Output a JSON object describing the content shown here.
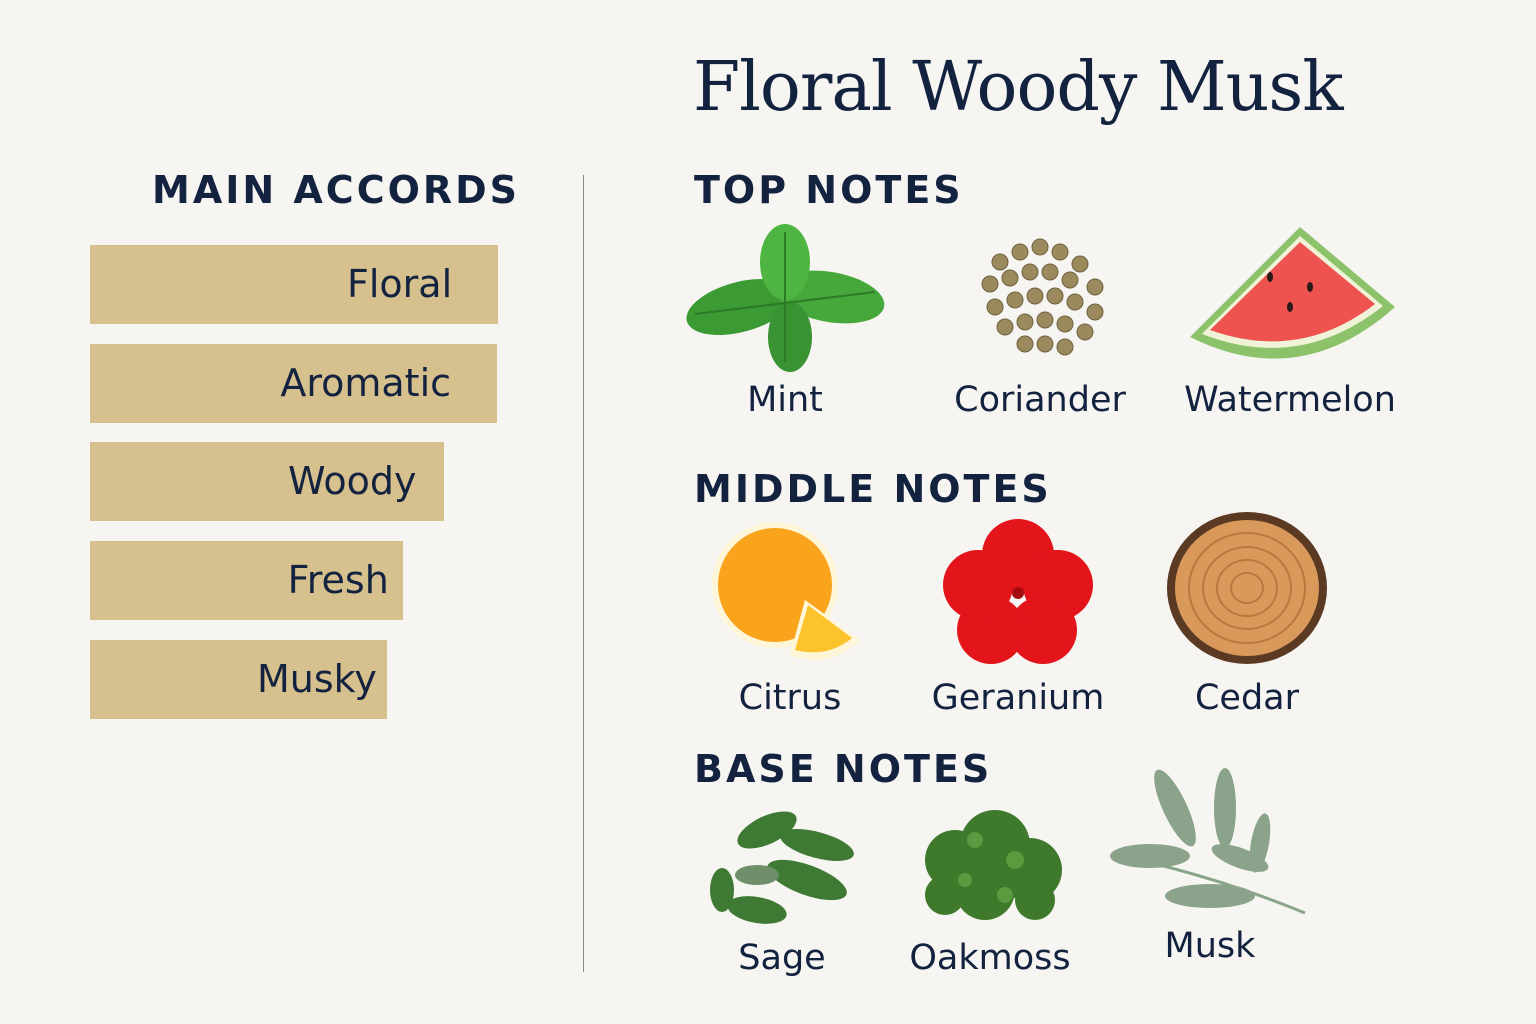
{
  "title": "Floral Woody Musk",
  "accords": {
    "heading": "MAIN ACCORDS",
    "color": "#d6c08e",
    "items": [
      {
        "label": "Floral",
        "strength_pct": 100
      },
      {
        "label": "Aromatic",
        "strength_pct": 99.8
      },
      {
        "label": "Woody",
        "strength_pct": 86.8
      },
      {
        "label": "Fresh",
        "strength_pct": 76.7
      },
      {
        "label": "Musky",
        "strength_pct": 72.8
      }
    ]
  },
  "notes": {
    "top": {
      "heading": "TOP NOTES",
      "items": [
        {
          "label": "Mint",
          "icon": "mint-icon"
        },
        {
          "label": "Coriander",
          "icon": "coriander-icon"
        },
        {
          "label": "Watermelon",
          "icon": "watermelon-icon"
        }
      ]
    },
    "middle": {
      "heading": "MIDDLE NOTES",
      "items": [
        {
          "label": "Citrus",
          "icon": "citrus-icon"
        },
        {
          "label": "Geranium",
          "icon": "geranium-icon"
        },
        {
          "label": "Cedar",
          "icon": "cedar-icon"
        }
      ]
    },
    "base": {
      "heading": "BASE NOTES",
      "items": [
        {
          "label": "Sage",
          "icon": "sage-icon"
        },
        {
          "label": "Oakmoss",
          "icon": "oakmoss-icon"
        },
        {
          "label": "Musk",
          "icon": "musk-icon"
        }
      ]
    }
  }
}
